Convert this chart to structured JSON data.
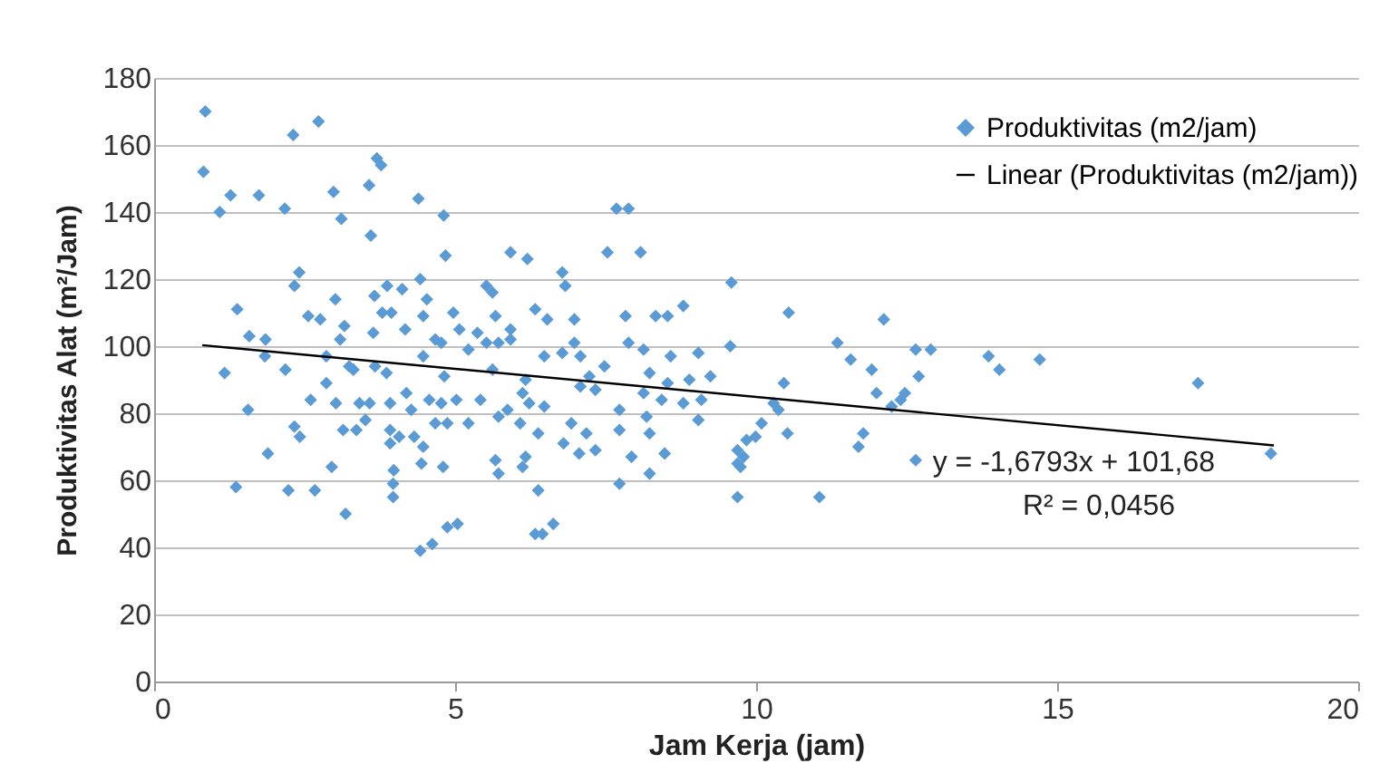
{
  "chart_data": {
    "type": "scatter",
    "xlabel": "Jam Kerja (jam)",
    "ylabel": "Produktivitas Alat (m²/Jam)",
    "xlim": [
      0,
      20
    ],
    "xticks": [
      0,
      5,
      10,
      15,
      20
    ],
    "ylim": [
      0,
      180
    ],
    "yticks": [
      0,
      20,
      40,
      60,
      80,
      100,
      120,
      140,
      160,
      180
    ],
    "grid": "y",
    "legend": "top right",
    "marker": "diamond",
    "annotations": [
      "y = -1,6793x + 101,68",
      "R² = 0,0456"
    ],
    "series": [
      {
        "name": "Produktivitas (m2/jam)",
        "color": "#5b9bd5",
        "x": [
          0.85,
          0.82,
          2.31,
          2.73,
          1.27,
          1.74,
          1.09,
          2.17,
          2.98,
          3.11,
          3.7,
          3.77,
          3.57,
          3.6,
          4.39,
          4.81,
          4.84,
          2.41,
          2.33,
          1.38,
          3.01,
          2.56,
          2.76,
          1.58,
          1.85,
          1.17,
          1.84,
          2.18,
          2.86,
          3.09,
          3.16,
          3.24,
          2.86,
          2.6,
          1.56,
          3.02,
          2.33,
          2.42,
          1.89,
          1.36,
          2.23,
          2.67,
          2.95,
          3.18,
          3.14,
          3.36,
          3.66,
          3.87,
          3.79,
          3.64,
          3.94,
          4.12,
          4.42,
          4.17,
          4.53,
          4.47,
          3.31,
          3.67,
          3.86,
          3.41,
          3.58,
          3.51,
          3.92,
          4.19,
          4.27,
          3.92,
          4.07,
          4.32,
          4.47,
          4.44,
          3.92,
          3.98,
          3.97,
          3.97,
          4.42,
          4.62,
          4.8,
          4.47,
          4.67,
          4.82,
          4.57,
          4.77,
          4.67,
          5.92,
          6.2,
          7.68,
          7.88,
          7.53,
          8.08,
          6.78,
          6.83,
          9.59,
          5.52,
          5.62,
          4.97,
          5.07,
          5.67,
          5.37,
          5.92,
          6.33,
          6.53,
          6.98,
          7.83,
          8.33,
          8.53,
          8.79,
          4.77,
          5.22,
          5.52,
          5.72,
          5.92,
          6.48,
          6.78,
          6.98,
          7.08,
          7.88,
          8.13,
          8.58,
          9.04,
          9.57,
          5.62,
          6.17,
          6.12,
          7.48,
          7.23,
          7.08,
          7.33,
          8.23,
          8.53,
          8.89,
          9.24,
          8.13,
          8.43,
          8.79,
          9.09,
          5.02,
          5.42,
          5.72,
          5.87,
          6.23,
          6.48,
          4.87,
          5.22,
          6.08,
          6.38,
          6.93,
          7.18,
          7.73,
          7.73,
          8.18,
          9.04,
          8.23,
          6.8,
          7.06,
          7.33,
          7.93,
          8.48,
          8.23,
          5.67,
          5.72,
          6.17,
          6.12,
          7.73,
          6.38,
          4.87,
          5.04,
          6.33,
          6.45,
          6.63,
          9.69,
          9.69,
          9.69,
          10.54,
          11.35,
          11.57,
          12.12,
          11.92,
          12.0,
          10.46,
          10.29,
          10.37,
          10.52,
          10.09,
          9.99,
          9.84,
          9.79,
          9.74,
          11.05,
          11.78,
          11.7,
          12.25,
          12.4,
          12.47,
          12.7,
          12.65,
          12.9,
          12.65,
          13.86,
          14.04,
          14.71,
          17.34,
          18.55
        ],
        "values": [
          170,
          152,
          163,
          167,
          145,
          145,
          140,
          141,
          146,
          138,
          156,
          154,
          148,
          133,
          144,
          139,
          127,
          122,
          118,
          111,
          114,
          109,
          108,
          103,
          102,
          92,
          97,
          93,
          97,
          102,
          106,
          94,
          89,
          84,
          81,
          83,
          76,
          73,
          68,
          58,
          57,
          57,
          64,
          50,
          75,
          75,
          115,
          118,
          110,
          104,
          110,
          117,
          120,
          105,
          114,
          109,
          93,
          94,
          92,
          83,
          83,
          78,
          83,
          86,
          81,
          75,
          73,
          73,
          70,
          65,
          71,
          63,
          59,
          55,
          39,
          41,
          64,
          97,
          102,
          91,
          84,
          83,
          77,
          128,
          126,
          141,
          141,
          128,
          128,
          122,
          118,
          119,
          118,
          116,
          110,
          105,
          109,
          104,
          105,
          111,
          108,
          108,
          109,
          109,
          109,
          112,
          101,
          99,
          101,
          101,
          102,
          97,
          98,
          101,
          97,
          101,
          99,
          97,
          98,
          100,
          93,
          90,
          86,
          94,
          91,
          88,
          87,
          92,
          89,
          90,
          91,
          86,
          84,
          83,
          84,
          84,
          84,
          79,
          81,
          83,
          82,
          77,
          77,
          77,
          74,
          77,
          74,
          81,
          75,
          79,
          78,
          74,
          71,
          68,
          69,
          67,
          68,
          62,
          66,
          62,
          67,
          64,
          59,
          57,
          46,
          47,
          44,
          44,
          47,
          69,
          65,
          55,
          110,
          101,
          96,
          108,
          93,
          86,
          89,
          83,
          81,
          74,
          77,
          73,
          72,
          67,
          64,
          55,
          74,
          70,
          82,
          84,
          86,
          91,
          99,
          99,
          66,
          97,
          93,
          96,
          89,
          68
        ]
      },
      {
        "name": "Linear (Produktivitas (m2/jam))",
        "type": "line",
        "color": "#000000",
        "x": [
          0.8,
          18.6
        ],
        "values": [
          100.3,
          70.4
        ],
        "marker": "none"
      }
    ]
  }
}
